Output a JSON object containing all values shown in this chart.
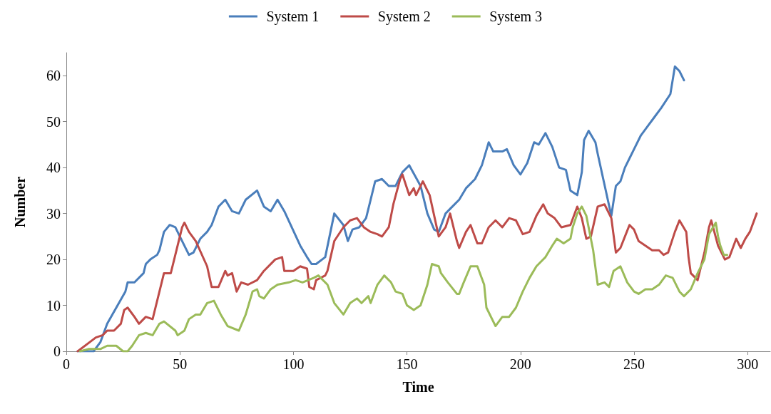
{
  "chart_data": {
    "type": "line",
    "xlabel": "Time",
    "ylabel": "Number",
    "xlim": [
      0,
      310
    ],
    "xticks": [
      0,
      50,
      100,
      150,
      200,
      250,
      300
    ],
    "ylim": [
      0,
      65
    ],
    "yticks": [
      0,
      10,
      20,
      30,
      40,
      50,
      60
    ],
    "grid": false,
    "legend": "top",
    "marker": "none",
    "line_style": "solid",
    "series": [
      {
        "name": "System 1",
        "color": "#4a7ebb",
        "x": [
          5,
          12,
          15,
          18,
          26,
          27,
          30,
          34,
          35,
          37,
          40,
          41,
          43,
          45.5,
          48,
          51,
          54,
          56,
          59,
          62,
          64,
          67,
          70,
          73,
          76,
          79,
          84,
          87,
          90,
          93,
          96,
          103,
          106,
          108,
          110,
          114,
          118,
          122,
          124,
          126,
          129,
          132,
          134,
          136,
          139,
          142,
          145,
          148,
          151,
          156,
          159,
          162,
          164,
          167,
          169,
          173,
          176,
          180,
          183,
          186,
          188,
          192,
          194,
          197,
          200,
          203,
          206,
          208,
          211,
          214,
          217,
          220,
          222,
          225,
          227,
          228,
          230,
          233,
          234,
          236,
          240,
          242,
          244,
          246,
          248,
          250,
          253,
          256,
          259,
          262,
          266,
          268,
          270,
          272
        ],
        "values": [
          0,
          0,
          2,
          6,
          13,
          15,
          15,
          17,
          19,
          20,
          21,
          22,
          26,
          27.5,
          27,
          24,
          21,
          21.5,
          24.5,
          26,
          27.5,
          31.5,
          33,
          30.5,
          30,
          33,
          35,
          31.5,
          30.5,
          33,
          30.5,
          23,
          20.5,
          19,
          19,
          20.5,
          30,
          27.5,
          24,
          26.5,
          27,
          29,
          33,
          37,
          37.5,
          36,
          36,
          39,
          40.5,
          36,
          30,
          26.5,
          26,
          30,
          31,
          33,
          35.5,
          37.5,
          40.5,
          45.5,
          43.5,
          43.5,
          44,
          40.5,
          38.5,
          41,
          45.5,
          45,
          47.5,
          44.5,
          40,
          39.5,
          35,
          34,
          39,
          46,
          48,
          45.5,
          43,
          38.5,
          29.5,
          36,
          37,
          40,
          42,
          44,
          47,
          49,
          51,
          53,
          56,
          62,
          61,
          59
        ]
      },
      {
        "name": "System 2",
        "color": "#be4b48",
        "x": [
          5,
          13,
          16,
          18,
          21,
          24,
          25.5,
          27,
          30,
          32,
          35,
          38,
          43,
          46,
          51,
          52,
          54,
          57,
          62,
          64,
          67,
          70,
          71,
          73,
          75,
          77,
          80,
          84,
          87,
          92,
          95,
          96,
          100,
          103,
          106,
          107,
          109,
          110,
          114,
          115,
          118,
          122,
          125,
          128,
          131,
          134,
          137,
          139,
          142,
          144,
          147,
          148,
          151,
          153,
          154,
          157,
          160,
          164,
          167,
          169,
          172,
          173,
          176,
          178,
          181,
          183,
          186,
          189,
          192,
          195,
          198,
          201,
          204,
          207,
          210,
          212,
          215,
          218,
          222,
          225,
          227,
          229,
          231,
          234,
          237,
          240,
          242,
          244,
          246,
          248,
          250,
          252,
          255,
          258,
          261,
          263,
          265,
          268,
          270,
          273,
          274,
          275,
          278,
          281,
          283,
          284,
          287,
          290,
          292,
          295,
          297,
          299,
          301,
          304
        ],
        "values": [
          0,
          3,
          3.5,
          4.5,
          4.5,
          6,
          9,
          9.5,
          7.5,
          6,
          7.5,
          7,
          17,
          17,
          27,
          28,
          26,
          24,
          18.5,
          14,
          14,
          17.5,
          16.5,
          17,
          13,
          15,
          14.5,
          15.5,
          17.5,
          20,
          20.5,
          17.5,
          17.5,
          18.5,
          18,
          14,
          13.5,
          15.5,
          16.5,
          17.5,
          24,
          27,
          28.5,
          29,
          27,
          26,
          25.5,
          25,
          27,
          32,
          37.5,
          38.5,
          34,
          35.5,
          34,
          37,
          34,
          25,
          27,
          30,
          24,
          22.5,
          26,
          27.5,
          23.5,
          23.5,
          27,
          28.5,
          27,
          29,
          28.5,
          25.5,
          26,
          29.5,
          32,
          30,
          29,
          27,
          27.5,
          31.5,
          29,
          24.5,
          25,
          31.5,
          32,
          29,
          21.5,
          22.5,
          25,
          27.5,
          26.5,
          24,
          23,
          22,
          22,
          21,
          21.5,
          26,
          28.5,
          26,
          20.5,
          17,
          15.5,
          21.5,
          27,
          28.5,
          23,
          20,
          20.5,
          24.5,
          22.5,
          24.5,
          26,
          30
        ]
      },
      {
        "name": "System 3",
        "color": "#9bbb59",
        "x": [
          6,
          10,
          15,
          18,
          22,
          25,
          27,
          29,
          32,
          35,
          38,
          41,
          43,
          48,
          49,
          52,
          54,
          57,
          59,
          62,
          65,
          68,
          71,
          76,
          79,
          82,
          84,
          85,
          87,
          90,
          93,
          98,
          101,
          104,
          109,
          111,
          115,
          118,
          122,
          125,
          128,
          130,
          133,
          134,
          137,
          140,
          143,
          145,
          148,
          150,
          153,
          156,
          159,
          161,
          164,
          165,
          168,
          172,
          173,
          175,
          178,
          181,
          184,
          185,
          189,
          192,
          195,
          198,
          201,
          204,
          207,
          211,
          214,
          216,
          219,
          222,
          223,
          225,
          227,
          229,
          232,
          234,
          237,
          239,
          241,
          244,
          247,
          250,
          252,
          255,
          258,
          261,
          264,
          267,
          270,
          272,
          275,
          278,
          281,
          283,
          286,
          287,
          288,
          289.5,
          291
        ],
        "values": [
          0,
          0.5,
          0.5,
          1.2,
          1.2,
          0,
          0,
          1.2,
          3.5,
          4,
          3.5,
          6,
          6.5,
          4.5,
          3.5,
          4.5,
          7,
          8,
          8,
          10.5,
          11,
          8,
          5.5,
          4.5,
          8,
          13,
          13.5,
          12,
          11.5,
          13.5,
          14.5,
          15,
          15.5,
          15,
          16,
          16.5,
          14.5,
          10.5,
          8,
          10.5,
          11.5,
          10.5,
          12,
          10.5,
          14.5,
          16.5,
          15,
          13,
          12.5,
          10,
          9,
          10,
          14.5,
          19,
          18.5,
          17,
          15,
          12.5,
          12.5,
          15,
          18.5,
          18.5,
          14.5,
          9.5,
          5.5,
          7.5,
          7.5,
          9.5,
          13,
          16,
          18.5,
          20.5,
          23,
          24.5,
          23.5,
          24.5,
          27,
          30,
          31.5,
          29.5,
          22,
          14.5,
          15,
          14,
          17.5,
          18.5,
          15,
          13,
          12.5,
          13.5,
          13.5,
          14.5,
          16.5,
          16,
          13,
          12,
          13.5,
          17,
          20,
          25.5,
          28,
          25,
          23,
          21,
          21
        ]
      }
    ]
  }
}
